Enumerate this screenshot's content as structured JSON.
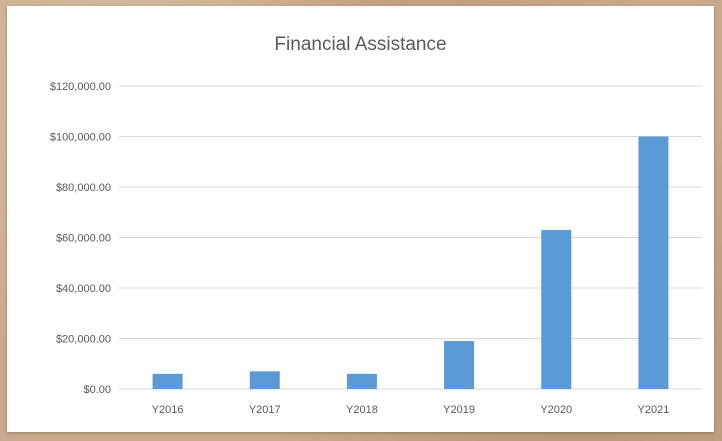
{
  "chart_data": {
    "type": "bar",
    "title": "Financial Assistance",
    "xlabel": "",
    "ylabel": "",
    "categories": [
      "Y2016",
      "Y2017",
      "Y2018",
      "Y2019",
      "Y2020",
      "Y2021"
    ],
    "values": [
      6000,
      7000,
      6000,
      19000,
      63000,
      100000
    ],
    "ylim": [
      0,
      120000
    ],
    "yticks": [
      0,
      20000,
      40000,
      60000,
      80000,
      100000,
      120000
    ],
    "ytick_labels": [
      "$0.00",
      "$20,000.00",
      "$40,000.00",
      "$60,000.00",
      "$80,000.00",
      "$100,000.00",
      "$120,000.00"
    ],
    "grid": true,
    "legend": "none",
    "colors": {
      "bar": "#5b9bd5",
      "grid": "#d9d9d9",
      "text": "#595959"
    }
  }
}
